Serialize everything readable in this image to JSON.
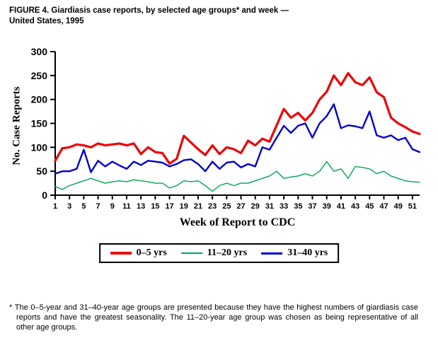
{
  "title_lines": [
    "FIGURE 4. Giardiasis case reports, by selected age groups* and week —",
    "United States, 1995"
  ],
  "footnote": "* The 0–5-year and 31–40-year age groups are presented because they have the highest numbers of giardiasis case reports and have the greatest seasonality. The 11–20-year age group was chosen as being representative of all other age groups.",
  "chart_data": {
    "type": "line",
    "title": "FIGURE 4. Giardiasis case reports, by selected age groups and week — United States, 1995",
    "xlabel": "Week of Report to CDC",
    "ylabel": "No. Case Reports",
    "x_range": [
      1,
      52
    ],
    "ylim": [
      0,
      300
    ],
    "yticks": [
      0,
      50,
      100,
      150,
      200,
      250,
      300
    ],
    "xticks": [
      1,
      3,
      5,
      7,
      9,
      11,
      13,
      15,
      17,
      19,
      21,
      23,
      25,
      27,
      29,
      31,
      33,
      35,
      37,
      39,
      41,
      43,
      45,
      47,
      49,
      51
    ],
    "grid": false,
    "legend_position": "bottom",
    "draw_order": [
      1,
      2,
      0
    ],
    "series": [
      {
        "name": "0–5 yrs",
        "color": "#ee0000",
        "stroke_width": 3.2,
        "legend_stroke": 4,
        "values": [
          72,
          98,
          100,
          106,
          104,
          100,
          108,
          104,
          106,
          108,
          104,
          108,
          86,
          100,
          90,
          88,
          66,
          76,
          124,
          110,
          96,
          84,
          104,
          86,
          100,
          96,
          88,
          114,
          104,
          118,
          112,
          146,
          180,
          162,
          172,
          156,
          172,
          200,
          216,
          250,
          230,
          255,
          236,
          230,
          246,
          215,
          205,
          162,
          150,
          142,
          133,
          128
        ]
      },
      {
        "name": "11–20 yrs",
        "color": "#00a651",
        "stroke_width": 1.4,
        "legend_stroke": 2,
        "values": [
          18,
          12,
          20,
          25,
          30,
          35,
          30,
          25,
          28,
          30,
          28,
          32,
          30,
          28,
          25,
          25,
          15,
          20,
          30,
          28,
          30,
          20,
          8,
          20,
          25,
          20,
          25,
          25,
          30,
          35,
          40,
          50,
          35,
          38,
          40,
          45,
          40,
          50,
          70,
          50,
          55,
          35,
          60,
          58,
          55,
          45,
          50,
          40,
          35,
          30,
          28,
          27
        ]
      },
      {
        "name": "31–40 yrs",
        "color": "#0000cc",
        "stroke_width": 2.4,
        "legend_stroke": 3,
        "values": [
          45,
          50,
          50,
          55,
          95,
          48,
          72,
          60,
          70,
          62,
          55,
          70,
          63,
          72,
          70,
          68,
          60,
          65,
          73,
          75,
          65,
          50,
          70,
          55,
          68,
          70,
          58,
          65,
          60,
          100,
          95,
          120,
          145,
          130,
          145,
          150,
          120,
          150,
          165,
          190,
          140,
          146,
          144,
          140,
          175,
          125,
          120,
          125,
          115,
          120,
          96,
          90
        ]
      }
    ]
  }
}
